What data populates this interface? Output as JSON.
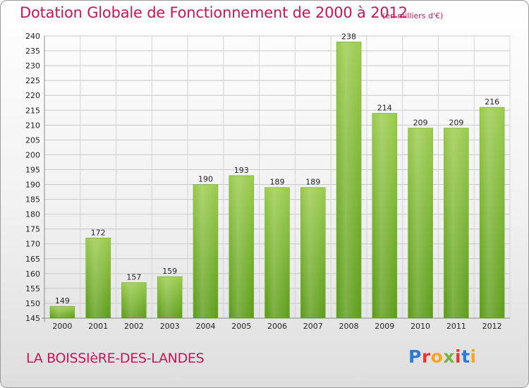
{
  "title": "Dotation Globale de Fonctionnement de 2000 à 2012",
  "unit": "(en milliers d'€)",
  "commune": "LA BOISSIèRE-DES-LANDES",
  "logo": {
    "letters": [
      "P",
      "r",
      "o",
      "x",
      "i",
      "t",
      "i"
    ],
    "colors": [
      "#2e7bd6",
      "#e53935",
      "#f5a623",
      "#7cb342",
      "#e53935",
      "#2e7bd6",
      "#f5a623"
    ]
  },
  "colors": {
    "bar": "#8cc63f",
    "bar_dark": "#5e9a1c",
    "title": "#c2185b"
  },
  "chart_data": {
    "type": "bar",
    "title": "Dotation Globale de Fonctionnement de 2000 à 2012",
    "categories": [
      "2000",
      "2001",
      "2002",
      "2003",
      "2004",
      "2005",
      "2006",
      "2007",
      "2008",
      "2009",
      "2010",
      "2011",
      "2012"
    ],
    "values": [
      149,
      172,
      157,
      159,
      190,
      193,
      189,
      189,
      238,
      214,
      209,
      209,
      216
    ],
    "data_labels": [
      "149",
      "172",
      "157",
      "159",
      "190",
      "193",
      "189",
      "189",
      "238",
      "214",
      "209",
      "209",
      "216"
    ],
    "y_ticks": [
      "145",
      "150",
      "155",
      "160",
      "165",
      "170",
      "175",
      "180",
      "185",
      "190",
      "195",
      "200",
      "205",
      "210",
      "215",
      "220",
      "225",
      "230",
      "235",
      "240"
    ],
    "ylim": [
      145,
      240
    ],
    "xlabel": "",
    "ylabel": "",
    "grid": true
  }
}
